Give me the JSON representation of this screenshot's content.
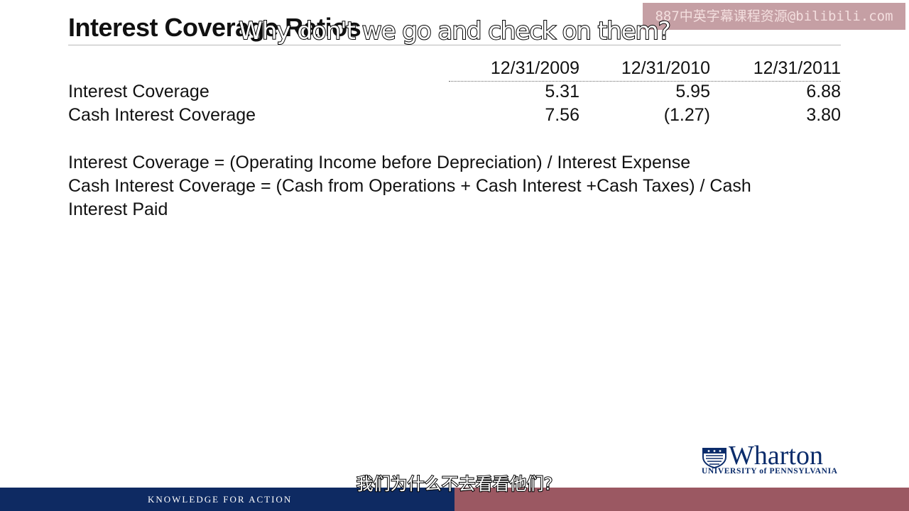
{
  "slide": {
    "title": "Interest Coverage Ratios",
    "table": {
      "columns": [
        "12/31/2009",
        "12/31/2010",
        "12/31/2011"
      ],
      "rows": [
        {
          "label": "Interest Coverage",
          "values": [
            "5.31",
            "5.95",
            "6.88"
          ]
        },
        {
          "label": "Cash Interest Coverage",
          "values": [
            "7.56",
            "(1.27)",
            "3.80"
          ]
        }
      ]
    },
    "formulas": [
      "Interest Coverage = (Operating Income before Depreciation) / Interest Expense",
      "Cash Interest Coverage = (Cash from Operations + Cash Interest +Cash Taxes) / Cash",
      "Interest Paid"
    ]
  },
  "branding": {
    "logo_name": "Wharton",
    "logo_subtitle": "UNIVERSITY of PENNSYLVANIA",
    "footer_tagline": "KNOWLEDGE FOR ACTION",
    "navy": "#0e2a62",
    "maroon": "#9b5862"
  },
  "overlay": {
    "watermark": "887中英字幕课程资源@bilibili.com",
    "caption_en": "Why don't we go and check on them?",
    "caption_zh": "我们为什么不去看看他们?"
  }
}
